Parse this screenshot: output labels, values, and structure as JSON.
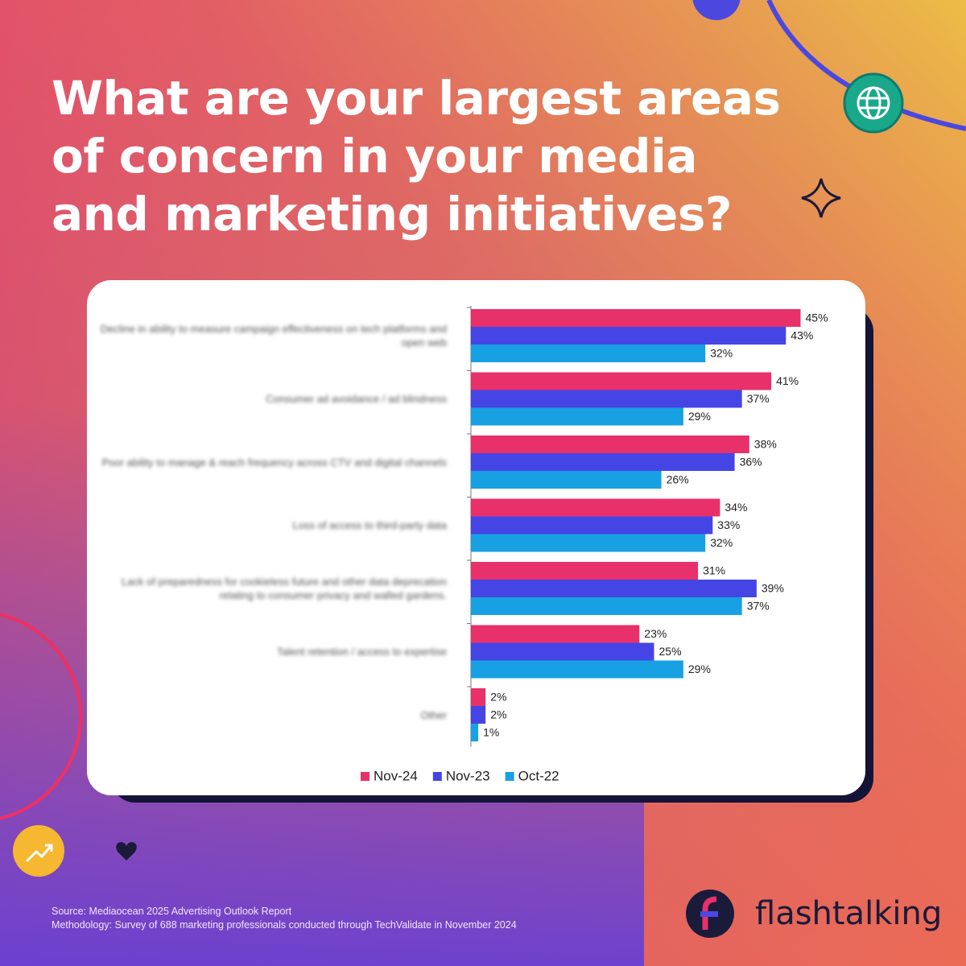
{
  "chart_data": {
    "type": "hbar",
    "title": "What are your largest areas of concern in your media and marketing initiatives?",
    "categories": [
      "Decline in ability to measure campaign effectiveness on tech platforms and open web",
      "Consumer ad avoidance / ad blindness",
      "Poor ability to manage & reach frequency across CTV and digital channels",
      "Loss of access to third-party data",
      "Lack of preparedness for cookieless future and other data deprecation relating to consumer privacy and walled gardens.",
      "Talent retention / access to expertise",
      "Other"
    ],
    "series": [
      {
        "name": "Nov-24",
        "color": "#e8306b",
        "values": [
          45,
          41,
          38,
          34,
          31,
          23,
          2
        ],
        "value_labels": [
          "45%",
          "41%",
          "38%",
          "34%",
          "31%",
          "23%",
          "2%"
        ]
      },
      {
        "name": "Nov-23",
        "color": "#4545e6",
        "values": [
          43,
          37,
          36,
          33,
          39,
          25,
          2
        ],
        "value_labels": [
          "43%",
          "37%",
          "36%",
          "33%",
          "39%",
          "25%",
          "2%"
        ]
      },
      {
        "name": "Oct-22",
        "color": "#17a1e2",
        "values": [
          32,
          29,
          26,
          32,
          37,
          29,
          1
        ],
        "value_labels": [
          "32%",
          "29%",
          "26%",
          "32%",
          "37%",
          "29%",
          "1%"
        ]
      }
    ],
    "legend": "bottom"
  },
  "footer": {
    "source": "Source: Mediaocean 2025 Advertising Outlook Report",
    "methodology": "Methodology: Survey of 688 marketing professionals conducted through TechValidate in November 2024"
  },
  "brand": "flashtalking"
}
